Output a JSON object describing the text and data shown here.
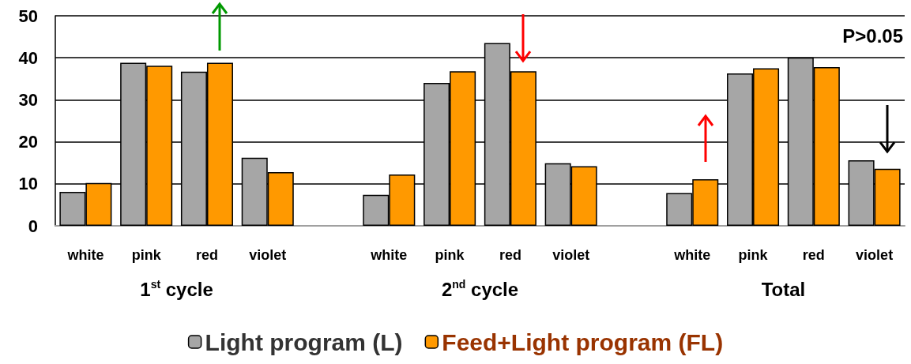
{
  "chart_data": {
    "type": "bar",
    "categories": [
      "white",
      "pink",
      "red",
      "violet",
      null,
      "white",
      "pink",
      "red",
      "violet",
      null,
      "white",
      "pink",
      "red",
      "violet"
    ],
    "series": [
      {
        "name": "Light program (L)",
        "color": "#a6a6a6",
        "values": [
          8.1,
          38.8,
          36.7,
          16.2,
          null,
          7.4,
          34.0,
          43.5,
          14.9,
          null,
          7.8,
          36.3,
          40.1,
          15.6
        ]
      },
      {
        "name": "Feed+Light program (FL)",
        "color": "#ff9900",
        "values": [
          10.2,
          38.1,
          38.8,
          12.8,
          null,
          12.2,
          36.8,
          36.8,
          14.2,
          null,
          11.1,
          37.5,
          37.8,
          13.6
        ]
      }
    ],
    "ylim": [
      0,
      50
    ],
    "yticks": [
      0,
      10,
      20,
      30,
      40,
      50
    ],
    "grid": "y",
    "legend": "bottom",
    "annotations": [
      "1$^{st}$ cycle",
      "2$^{nd}$ cycle",
      "Total",
      "P>0.05"
    ]
  }
}
